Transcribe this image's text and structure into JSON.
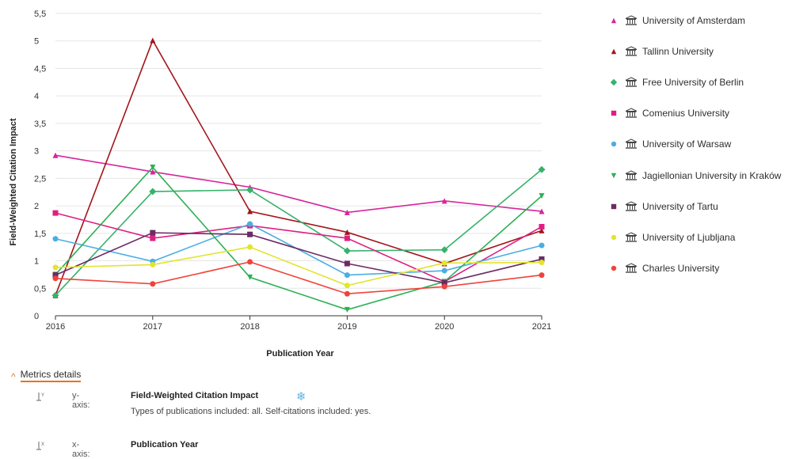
{
  "chart_data": {
    "type": "line",
    "xlabel": "Publication Year",
    "ylabel": "Field-Weighted Citation Impact",
    "x": [
      "2016",
      "2017",
      "2018",
      "2019",
      "2020",
      "2021"
    ],
    "ylim": [
      0,
      5.5
    ],
    "yticks": [
      "0",
      "0,5",
      "1",
      "1,5",
      "2",
      "2,5",
      "3",
      "3,5",
      "4",
      "4,5",
      "5",
      "5,5"
    ],
    "grid": true,
    "legend_position": "right",
    "series": [
      {
        "name": "University of Amsterdam",
        "color": "#d6259c",
        "marker": "triangle-up",
        "values": [
          2.92,
          2.62,
          2.34,
          1.88,
          2.09,
          1.9
        ]
      },
      {
        "name": "Tallinn University",
        "color": "#a3151b",
        "marker": "triangle-up",
        "values": [
          0.37,
          5.01,
          1.9,
          1.52,
          0.95,
          1.55
        ]
      },
      {
        "name": "Free University of Berlin",
        "color": "#36b26b",
        "marker": "diamond",
        "values": [
          0.37,
          2.26,
          2.29,
          1.18,
          1.2,
          2.66
        ]
      },
      {
        "name": "Comenius University",
        "color": "#df1f83",
        "marker": "square",
        "values": [
          1.87,
          1.41,
          1.64,
          1.41,
          0.62,
          1.62
        ]
      },
      {
        "name": "University of Warsaw",
        "color": "#4aaee4",
        "marker": "circle",
        "values": [
          1.4,
          0.99,
          1.67,
          0.74,
          0.82,
          1.28
        ]
      },
      {
        "name": "Jagiellonian University in Kraków",
        "color": "#2bb052",
        "marker": "triangle-down",
        "values": [
          0.75,
          2.7,
          0.7,
          0.11,
          0.62,
          2.18
        ]
      },
      {
        "name": "University of Tartu",
        "color": "#6b2b63",
        "marker": "square",
        "values": [
          0.74,
          1.51,
          1.48,
          0.95,
          0.6,
          1.03
        ]
      },
      {
        "name": "University of Ljubljana",
        "color": "#e2e52c",
        "marker": "circle",
        "values": [
          0.88,
          0.93,
          1.25,
          0.55,
          0.96,
          0.97
        ]
      },
      {
        "name": "Charles University",
        "color": "#f0433a",
        "marker": "circle",
        "values": [
          0.68,
          0.58,
          0.98,
          0.4,
          0.53,
          0.74
        ]
      }
    ]
  },
  "details": {
    "toggle_label": "Metrics details",
    "y_key": "y-axis:",
    "y_title": "Field-Weighted Citation Impact",
    "y_sub": "Types of publications included: all.   Self-citations included: yes.",
    "x_key": "x-axis:",
    "x_title": "Publication Year"
  },
  "icons": {
    "legend_icon": "institution-icon",
    "settings_icon": "gear-icon",
    "toggle_icon": "chevron-up-icon"
  }
}
